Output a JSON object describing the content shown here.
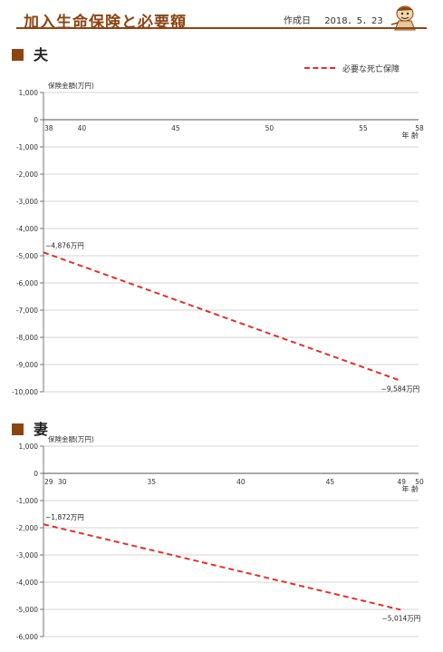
{
  "header": {
    "title": "加入生命保険と必要額",
    "created_label": "作成日",
    "created_date": "2018．5．23",
    "mascot_icon": "mascot-icon"
  },
  "legend": {
    "label": "必要な死亡保障",
    "color": "#e03030"
  },
  "sections": [
    {
      "title": "夫"
    },
    {
      "title": "妻"
    }
  ],
  "chart_data": [
    {
      "type": "line",
      "title": "夫",
      "ylabel": "保険金額(万円)",
      "xlabel": "年 齢",
      "ylim": [
        -10000,
        1000
      ],
      "xlim": [
        38,
        58
      ],
      "yticks": [
        "1,000",
        "0",
        "-1,000",
        "-2,000",
        "-3,000",
        "-4,000",
        "-5,000",
        "-6,000",
        "-7,000",
        "-8,000",
        "-9,000",
        "-10,000"
      ],
      "yvalues": [
        1000,
        0,
        -1000,
        -2000,
        -3000,
        -4000,
        -5000,
        -6000,
        -7000,
        -8000,
        -9000,
        -10000
      ],
      "xticks": [
        38,
        40,
        45,
        50,
        55,
        58
      ],
      "grid": true,
      "series": [
        {
          "name": "必要な死亡保障",
          "x": [
            38,
            57
          ],
          "y": [
            -4876,
            -9584
          ],
          "labels": [
            "−4,876万円",
            "−9,584万円"
          ]
        }
      ]
    },
    {
      "type": "line",
      "title": "妻",
      "ylabel": "保険金額(万円)",
      "xlabel": "年 齢",
      "ylim": [
        -6000,
        1000
      ],
      "xlim": [
        29,
        50
      ],
      "yticks": [
        "1,000",
        "0",
        "-1,000",
        "-2,000",
        "-3,000",
        "-4,000",
        "-5,000",
        "-6,000"
      ],
      "yvalues": [
        1000,
        0,
        -1000,
        -2000,
        -3000,
        -4000,
        -5000,
        -6000
      ],
      "xticks": [
        29,
        30,
        35,
        40,
        45,
        49,
        50
      ],
      "grid": true,
      "series": [
        {
          "name": "必要な死亡保障",
          "x": [
            29,
            49
          ],
          "y": [
            -1872,
            -5014
          ],
          "labels": [
            "−1,872万円",
            "−5,014万円"
          ]
        }
      ]
    }
  ]
}
